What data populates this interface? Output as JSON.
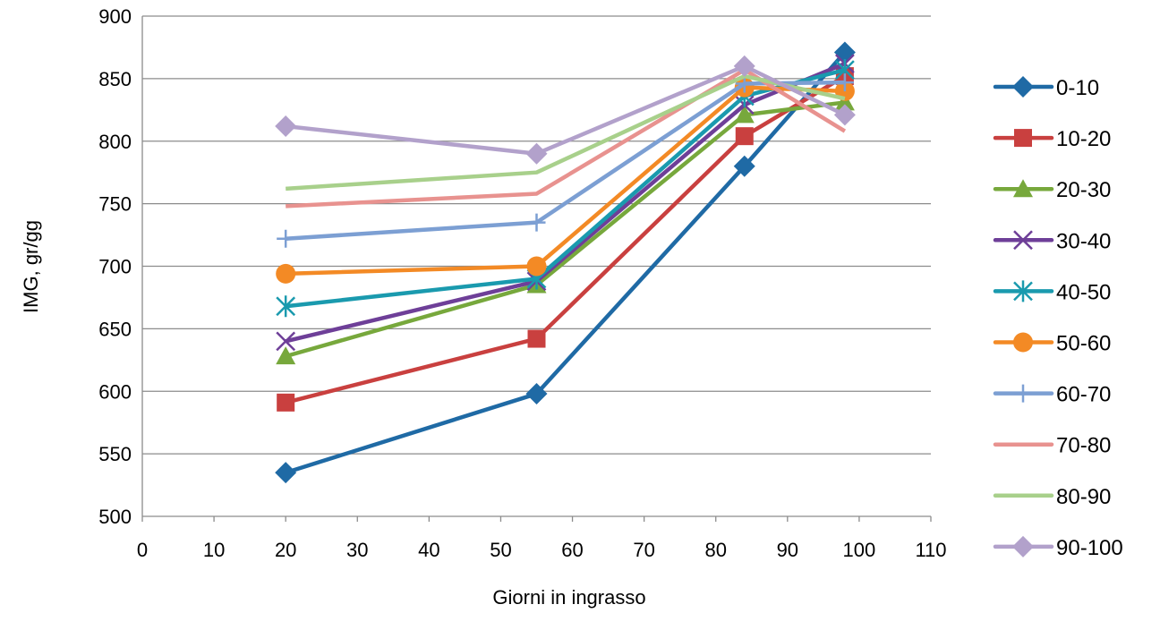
{
  "chart_data": {
    "type": "line",
    "title": "",
    "xlabel": "Giorni in ingrasso",
    "ylabel": "IMG, gr/gg",
    "xlim": [
      0,
      110
    ],
    "ylim": [
      500,
      900
    ],
    "xticks": [
      0,
      10,
      20,
      30,
      40,
      50,
      60,
      70,
      80,
      90,
      100,
      110
    ],
    "yticks": [
      500,
      550,
      600,
      650,
      700,
      750,
      800,
      850,
      900
    ],
    "grid": "horizontal",
    "legend_position": "right",
    "x": [
      20,
      55,
      84,
      98
    ],
    "series": [
      {
        "name": "0-10",
        "color": "#1f6aa5",
        "marker": "diamond",
        "values": [
          535,
          598,
          780,
          871
        ]
      },
      {
        "name": "10-20",
        "color": "#c9403f",
        "marker": "square",
        "values": [
          591,
          642,
          804,
          852
        ]
      },
      {
        "name": "20-30",
        "color": "#77a83c",
        "marker": "triangle",
        "values": [
          628,
          685,
          821,
          831
        ]
      },
      {
        "name": "30-40",
        "color": "#6e3f98",
        "marker": "x",
        "values": [
          640,
          688,
          829,
          862
        ]
      },
      {
        "name": "40-50",
        "color": "#1a9aae",
        "marker": "asterisk",
        "values": [
          668,
          690,
          836,
          857
        ]
      },
      {
        "name": "50-60",
        "color": "#f38a25",
        "marker": "circle",
        "values": [
          694,
          700,
          843,
          840
        ]
      },
      {
        "name": "60-70",
        "color": "#7c9fd3",
        "marker": "plus",
        "values": [
          722,
          735,
          846,
          847
        ]
      },
      {
        "name": "70-80",
        "color": "#e8928f",
        "marker": "none",
        "values": [
          748,
          758,
          857,
          808
        ]
      },
      {
        "name": "80-90",
        "color": "#a8d08b",
        "marker": "none",
        "values": [
          762,
          775,
          852,
          834
        ]
      },
      {
        "name": "90-100",
        "color": "#b2a1cb",
        "marker": "diamond",
        "values": [
          812,
          790,
          860,
          821
        ]
      }
    ]
  }
}
